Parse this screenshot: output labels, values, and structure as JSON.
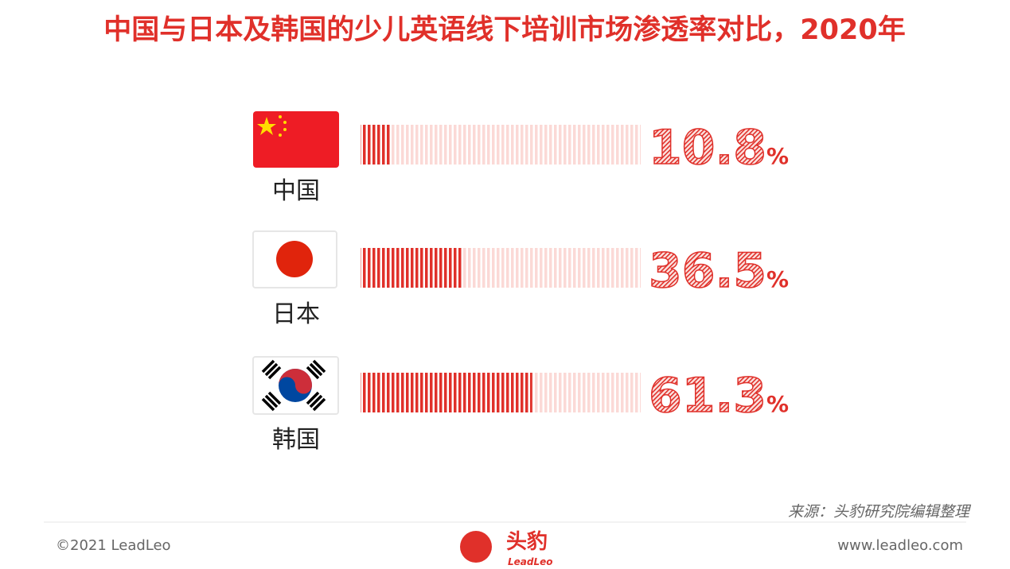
{
  "chart_data": {
    "type": "bar",
    "title": "中国与日本及韩国的少儿英语线下培训市场渗透率对比，2020年",
    "categories": [
      "中国",
      "日本",
      "韩国"
    ],
    "values": [
      10.8,
      36.5,
      61.3
    ],
    "value_suffix": "%",
    "xlim": [
      0,
      100
    ],
    "color": "#e0302a",
    "source": "来源：头豹研究院编辑整理",
    "footer": {
      "copyright": "©2021 LeadLeo",
      "website": "www.leadleo.com",
      "logo_name": "头豹",
      "logo_sub": "LeadLeo"
    }
  }
}
